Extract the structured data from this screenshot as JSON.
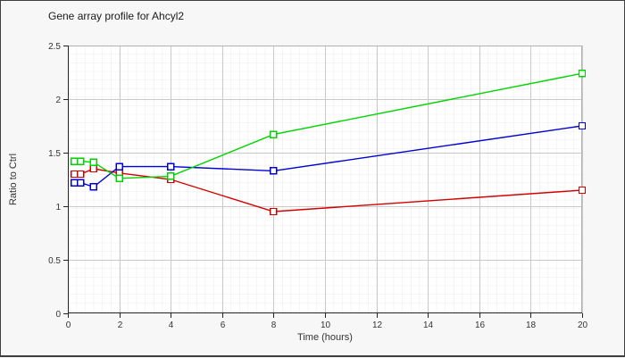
{
  "chart_data": {
    "type": "line",
    "title": "Gene array profile for Ahcyl2",
    "xlabel": "Time (hours)",
    "ylabel": "Ratio to Ctrl",
    "xlim": [
      0,
      20
    ],
    "ylim": [
      0,
      2.5
    ],
    "x_ticks": [
      "0",
      "2",
      "4",
      "6",
      "8",
      "10",
      "12",
      "14",
      "16",
      "18",
      "20"
    ],
    "y_ticks": [
      "0",
      "0.5",
      "1",
      "1.5",
      "2",
      "2.5"
    ],
    "grid": "minor+major",
    "legend": "none",
    "x": [
      0.25,
      0.5,
      1,
      2,
      4,
      8,
      20
    ],
    "series": [
      {
        "name": "red-series",
        "color": "#d40000",
        "marker": "open-square",
        "values": [
          1.3,
          1.3,
          1.35,
          1.31,
          1.25,
          0.95,
          1.15
        ]
      },
      {
        "name": "blue-series",
        "color": "#0000d4",
        "marker": "open-square",
        "values": [
          1.22,
          1.22,
          1.18,
          1.37,
          1.37,
          1.33,
          1.75
        ]
      },
      {
        "name": "green-series",
        "color": "#00d400",
        "marker": "open-square",
        "values": [
          1.42,
          1.42,
          1.41,
          1.26,
          1.28,
          1.67,
          2.24
        ]
      }
    ]
  },
  "colors": {
    "background": "#f7f7f7",
    "plot_background": "#ffffff",
    "minor_grid": "#ebebeb",
    "major_grid": "#c9c9c9",
    "plot_border": "#b0b0b0",
    "axis": "#222222",
    "tick_text": "#333333",
    "frame_border": "#3f3f3f"
  }
}
